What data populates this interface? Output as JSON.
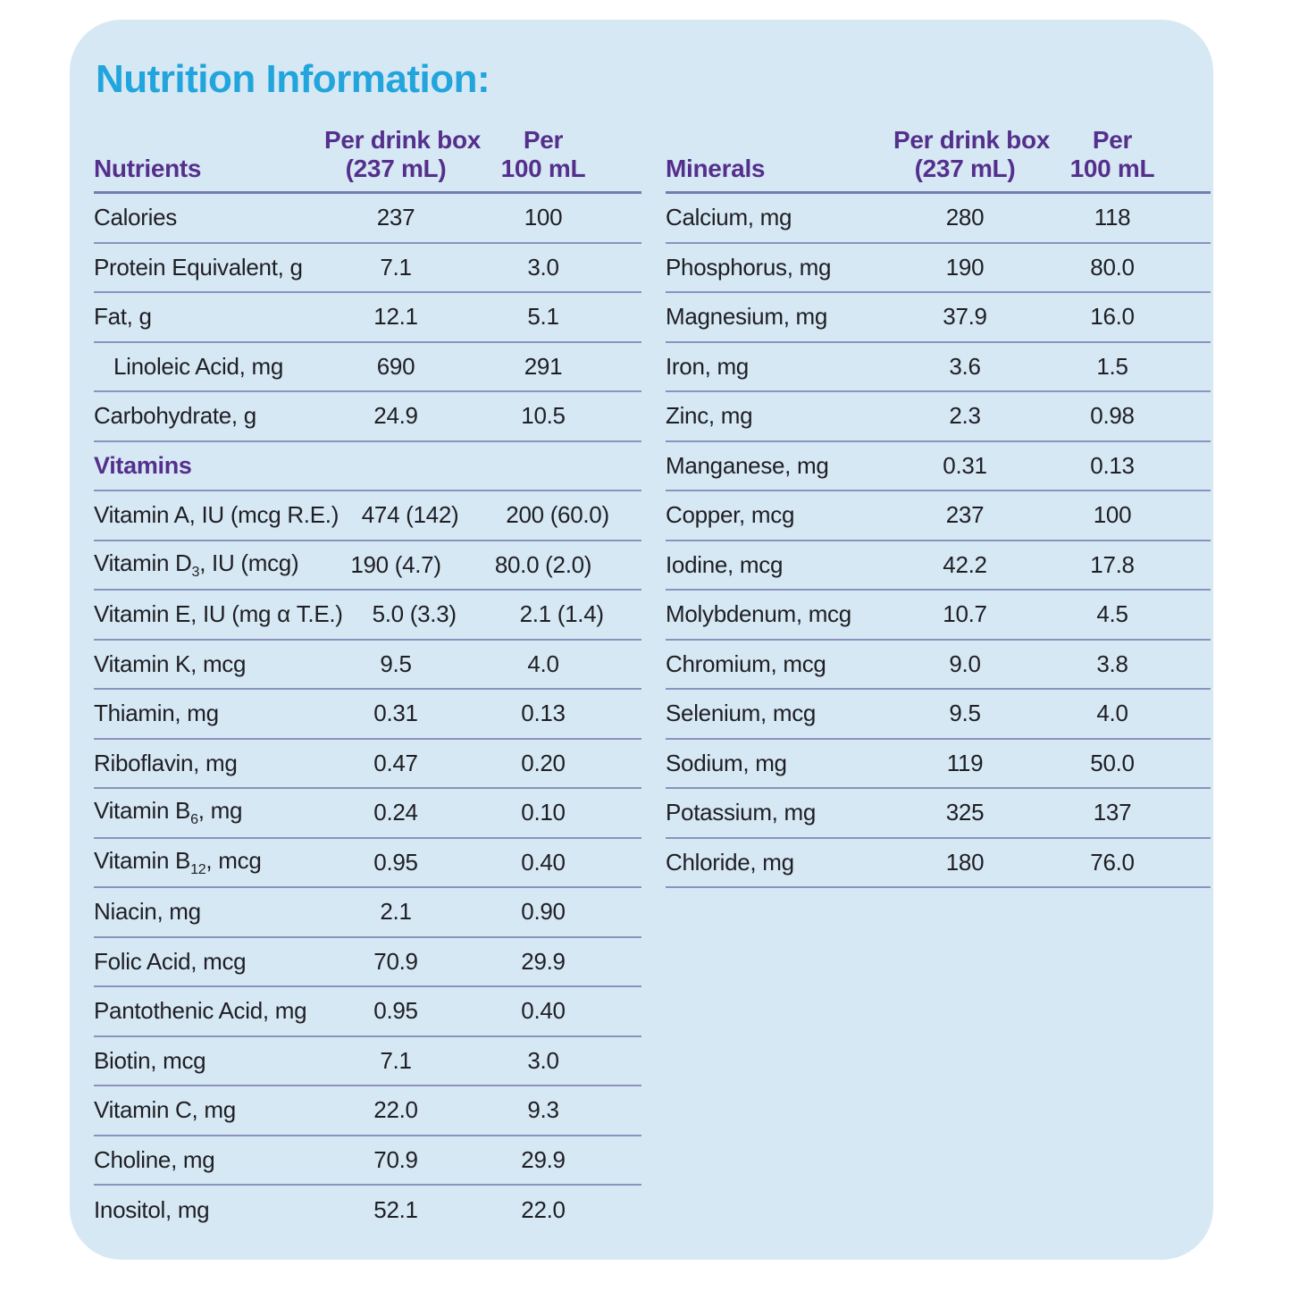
{
  "title": "Nutrition Information:",
  "colors": {
    "card_background": "#d7e8f5",
    "title_cyan": "#21a5dc",
    "header_purple": "#54308c",
    "divider_blue": "#8c92be",
    "text": "#1e1f23"
  },
  "tables": [
    {
      "id": "nutrients",
      "header": {
        "col1": "Nutrients",
        "col2_line1": "Per drink box",
        "col2_line2": "(237 mL)",
        "col3_line1": "Per",
        "col3_line2": "100 mL"
      },
      "rows": [
        {
          "label": "Calories",
          "per_box": "237",
          "per_100": "100"
        },
        {
          "label": "Protein Equivalent, g",
          "per_box": "7.1",
          "per_100": "3.0"
        },
        {
          "label": "Fat, g",
          "per_box": "12.1",
          "per_100": "5.1"
        },
        {
          "label": "Linoleic Acid, mg",
          "indent": true,
          "per_box": "690",
          "per_100": "291"
        },
        {
          "label": "Carbohydrate, g",
          "per_box": "24.9",
          "per_100": "10.5"
        },
        {
          "section": "Vitamins"
        },
        {
          "label": "Vitamin A, IU (mcg R.E.)",
          "per_box": "474 (142)",
          "per_100": "200 (60.0)"
        },
        {
          "label_prefix": "Vitamin D",
          "label_sub": "3",
          "label_suffix": ", IU (mcg)",
          "per_box": "190 (4.7)",
          "per_100": "80.0 (2.0)"
        },
        {
          "label": "Vitamin E, IU (mg α T.E.)",
          "per_box": "5.0 (3.3)",
          "per_100": "2.1 (1.4)"
        },
        {
          "label": "Vitamin K, mcg",
          "per_box": "9.5",
          "per_100": "4.0"
        },
        {
          "label": "Thiamin, mg",
          "per_box": "0.31",
          "per_100": "0.13"
        },
        {
          "label": "Riboflavin, mg",
          "per_box": "0.47",
          "per_100": "0.20"
        },
        {
          "label_prefix": "Vitamin B",
          "label_sub": "6",
          "label_suffix": ", mg",
          "per_box": "0.24",
          "per_100": "0.10"
        },
        {
          "label_prefix": "Vitamin B",
          "label_sub": "12",
          "label_suffix": ", mcg",
          "per_box": "0.95",
          "per_100": "0.40"
        },
        {
          "label": "Niacin, mg",
          "per_box": "2.1",
          "per_100": "0.90"
        },
        {
          "label": "Folic Acid, mcg",
          "per_box": "70.9",
          "per_100": "29.9"
        },
        {
          "label": "Pantothenic Acid, mg",
          "per_box": "0.95",
          "per_100": "0.40"
        },
        {
          "label": "Biotin, mcg",
          "per_box": "7.1",
          "per_100": "3.0"
        },
        {
          "label": "Vitamin C, mg",
          "per_box": "22.0",
          "per_100": "9.3"
        },
        {
          "label": "Choline, mg",
          "per_box": "70.9",
          "per_100": "29.9"
        },
        {
          "label": "Inositol, mg",
          "per_box": "52.1",
          "per_100": "22.0",
          "last": true
        }
      ]
    },
    {
      "id": "minerals",
      "header": {
        "col1": "Minerals",
        "col2_line1": "Per drink box",
        "col2_line2": "(237 mL)",
        "col3_line1": "Per",
        "col3_line2": "100 mL"
      },
      "rows": [
        {
          "label": "Calcium, mg",
          "per_box": "280",
          "per_100": "118"
        },
        {
          "label": "Phosphorus, mg",
          "per_box": "190",
          "per_100": "80.0"
        },
        {
          "label": "Magnesium, mg",
          "per_box": "37.9",
          "per_100": "16.0"
        },
        {
          "label": "Iron, mg",
          "per_box": "3.6",
          "per_100": "1.5"
        },
        {
          "label": "Zinc, mg",
          "per_box": "2.3",
          "per_100": "0.98"
        },
        {
          "label": "Manganese, mg",
          "per_box": "0.31",
          "per_100": "0.13"
        },
        {
          "label": "Copper, mcg",
          "per_box": "237",
          "per_100": "100"
        },
        {
          "label": "Iodine, mcg",
          "per_box": "42.2",
          "per_100": "17.8"
        },
        {
          "label": "Molybdenum, mcg",
          "per_box": "10.7",
          "per_100": "4.5"
        },
        {
          "label": "Chromium, mcg",
          "per_box": "9.0",
          "per_100": "3.8"
        },
        {
          "label": "Selenium, mcg",
          "per_box": "9.5",
          "per_100": "4.0"
        },
        {
          "label": "Sodium, mg",
          "per_box": "119",
          "per_100": "50.0"
        },
        {
          "label": "Potassium, mg",
          "per_box": "325",
          "per_100": "137"
        },
        {
          "label": "Chloride, mg",
          "per_box": "180",
          "per_100": "76.0"
        }
      ]
    }
  ]
}
